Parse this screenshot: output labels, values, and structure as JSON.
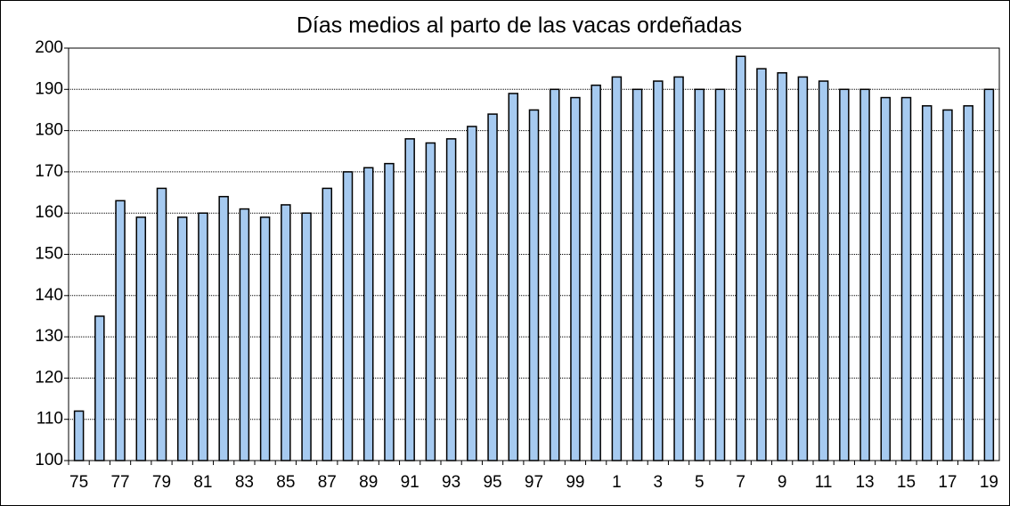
{
  "chart_data": {
    "type": "bar",
    "title": "Días medios al parto de las vacas ordeñadas",
    "categories": [
      "75",
      null,
      "77",
      null,
      "79",
      null,
      "81",
      null,
      "83",
      null,
      "85",
      null,
      "87",
      null,
      "89",
      null,
      "91",
      null,
      "93",
      null,
      "95",
      null,
      "97",
      null,
      "99",
      null,
      "1",
      null,
      "3",
      null,
      "5",
      null,
      "7",
      null,
      "9",
      null,
      "11",
      null,
      "13",
      null,
      "15",
      null,
      "17",
      null,
      "19"
    ],
    "values": [
      112,
      135,
      163,
      159,
      166,
      159,
      160,
      164,
      161,
      159,
      162,
      160,
      166,
      170,
      171,
      172,
      178,
      177,
      178,
      181,
      184,
      189,
      185,
      190,
      188,
      191,
      193,
      190,
      192,
      193,
      190,
      190,
      198,
      195,
      194,
      193,
      192,
      190,
      190,
      188,
      188,
      186,
      185,
      186,
      190
    ],
    "color": "#a6caf0",
    "ylim": [
      100,
      200
    ],
    "yticks": [
      100,
      110,
      120,
      130,
      140,
      150,
      160,
      170,
      180,
      190,
      200
    ],
    "grid": true
  }
}
